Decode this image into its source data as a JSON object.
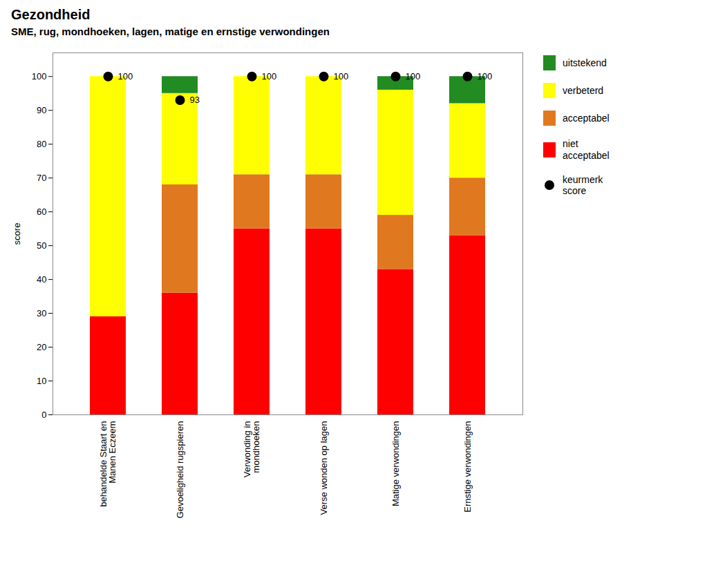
{
  "chart_data": {
    "type": "bar",
    "stacked": true,
    "title": "Gezondheid",
    "subtitle": "SME, rug, mondhoeken, lagen, matige en ernstige verwondingen",
    "categories": [
      "behandelde Staart en\nManen Eczeem",
      "Gevoeligheid rugspieren",
      "Verwonding in\nmondhoeken",
      "Verse wonden op lagen",
      "Matige verwondingen",
      "Ernstige verwondingen"
    ],
    "series": [
      {
        "name": "niet\nacceptabel",
        "color": "#FF0000",
        "values": [
          29,
          36,
          55,
          55,
          43,
          53
        ]
      },
      {
        "name": "acceptabel",
        "color": "#E07820",
        "values": [
          0,
          32,
          16,
          16,
          16,
          17
        ]
      },
      {
        "name": "verbeterd",
        "color": "#FFFF00",
        "values": [
          71,
          27,
          29,
          29,
          37,
          22
        ]
      },
      {
        "name": "uitstekend",
        "color": "#228B22",
        "values": [
          0,
          5,
          0,
          0,
          4,
          8
        ]
      },
      {
        "name": "keurmerk\nscore",
        "type": "scatter",
        "marker": "circle",
        "color": "#000000",
        "data_labels": true,
        "values": [
          100,
          93,
          100,
          100,
          100,
          100
        ]
      }
    ],
    "ylabel": "score",
    "ylim": [
      0,
      107
    ],
    "yticks": [
      0,
      10,
      20,
      30,
      40,
      50,
      60,
      70,
      80,
      90,
      100
    ],
    "grid": false,
    "legend": "right"
  }
}
